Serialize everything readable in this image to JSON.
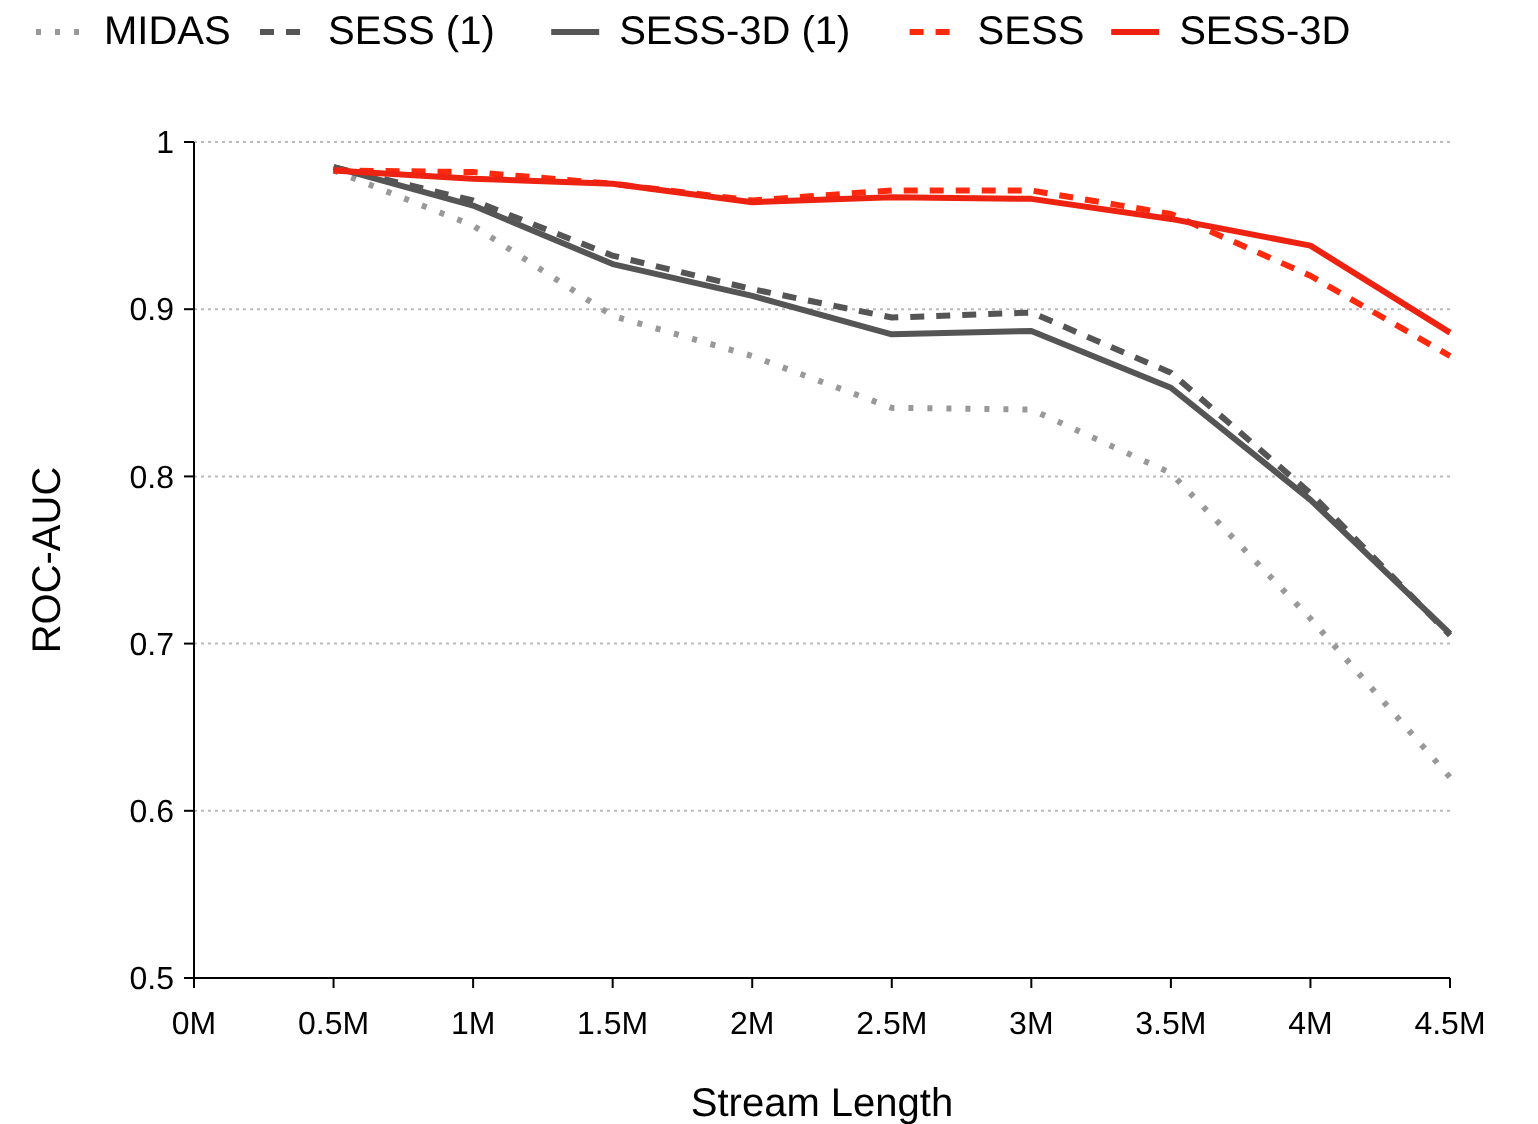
{
  "chart_data": {
    "type": "line",
    "xlabel": "Stream Length",
    "ylabel": "ROC-AUC",
    "x": [
      0.5,
      1,
      1.5,
      2,
      2.5,
      3,
      3.5,
      4,
      4.5
    ],
    "xlim": [
      0,
      4.5
    ],
    "xticks": [
      {
        "value": 0,
        "label": "0M"
      },
      {
        "value": 0.5,
        "label": "0.5M"
      },
      {
        "value": 1,
        "label": "1M"
      },
      {
        "value": 1.5,
        "label": "1.5M"
      },
      {
        "value": 2,
        "label": "2M"
      },
      {
        "value": 2.5,
        "label": "2.5M"
      },
      {
        "value": 3,
        "label": "3M"
      },
      {
        "value": 3.5,
        "label": "3.5M"
      },
      {
        "value": 4,
        "label": "4M"
      },
      {
        "value": 4.5,
        "label": "4.5M"
      }
    ],
    "ylim": [
      0.5,
      1
    ],
    "yticks": [
      0.5,
      0.6,
      0.7,
      0.8,
      0.9,
      1
    ],
    "grid": "y",
    "legend": "top",
    "marker": "none",
    "series": [
      {
        "name": "MIDAS",
        "color": "#999999",
        "line_style": "dotted",
        "values": [
          0.983,
          0.95,
          0.896,
          0.872,
          0.841,
          0.84,
          0.802,
          0.715,
          0.62
        ]
      },
      {
        "name": "SESS (1)",
        "color": "#555555",
        "line_style": "dashed",
        "values": [
          0.985,
          0.965,
          0.932,
          0.912,
          0.895,
          0.898,
          0.862,
          0.79,
          0.705
        ]
      },
      {
        "name": "SESS-3D (1)",
        "color": "#555555",
        "line_style": "solid",
        "values": [
          0.985,
          0.962,
          0.927,
          0.908,
          0.885,
          0.887,
          0.853,
          0.786,
          0.706
        ]
      },
      {
        "name": "SESS",
        "color": "#ff2a0e",
        "line_style": "dashed",
        "values": [
          0.983,
          0.982,
          0.975,
          0.965,
          0.971,
          0.971,
          0.957,
          0.92,
          0.872
        ]
      },
      {
        "name": "SESS-3D",
        "color": "#ee2211",
        "line_style": "solid",
        "values": [
          0.983,
          0.978,
          0.975,
          0.964,
          0.967,
          0.966,
          0.954,
          0.938,
          0.886
        ]
      }
    ]
  }
}
